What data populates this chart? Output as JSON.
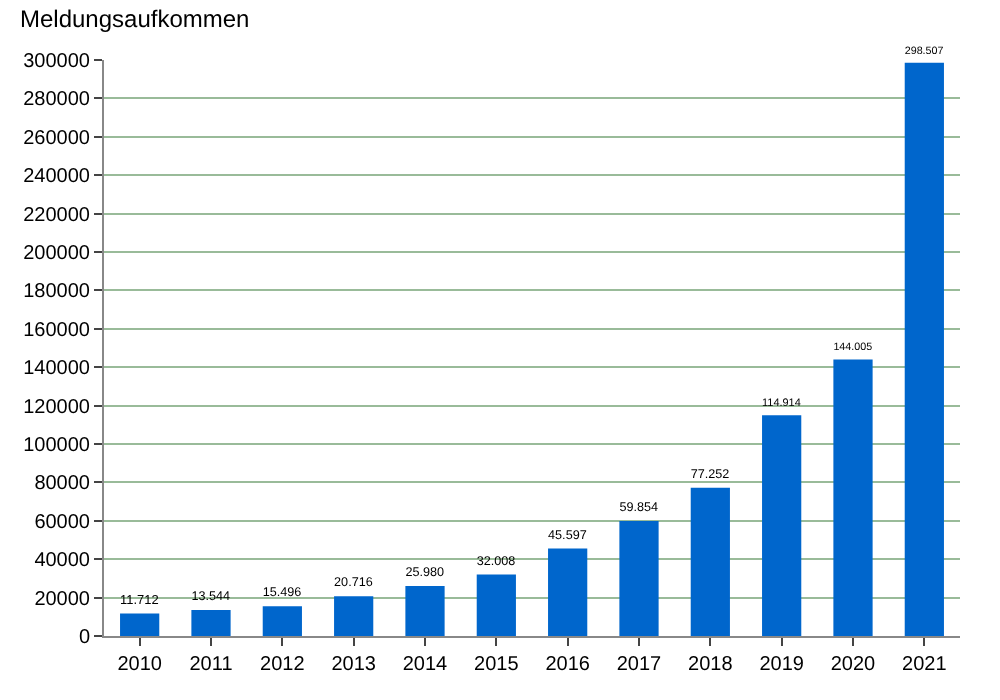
{
  "chart_data": {
    "type": "bar",
    "title": "Meldungsaufkommen",
    "categories": [
      "2010",
      "2011",
      "2012",
      "2013",
      "2014",
      "2015",
      "2016",
      "2017",
      "2018",
      "2019",
      "2020",
      "2021"
    ],
    "values": [
      11712,
      13544,
      15496,
      20716,
      25980,
      32008,
      45597,
      59854,
      77252,
      114914,
      144005,
      298507
    ],
    "value_labels": [
      "11.712",
      "13.544",
      "15.496",
      "20.716",
      "25.980",
      "32.008",
      "45.597",
      "59.854",
      "77.252",
      "114.914",
      "144.005",
      "298.507"
    ],
    "color": "#0066cc",
    "ylim": [
      0,
      300000
    ],
    "yticks": [
      0,
      20000,
      40000,
      60000,
      80000,
      100000,
      120000,
      140000,
      160000,
      180000,
      200000,
      220000,
      240000,
      260000,
      280000,
      300000
    ],
    "grid": "y",
    "legend": false
  }
}
